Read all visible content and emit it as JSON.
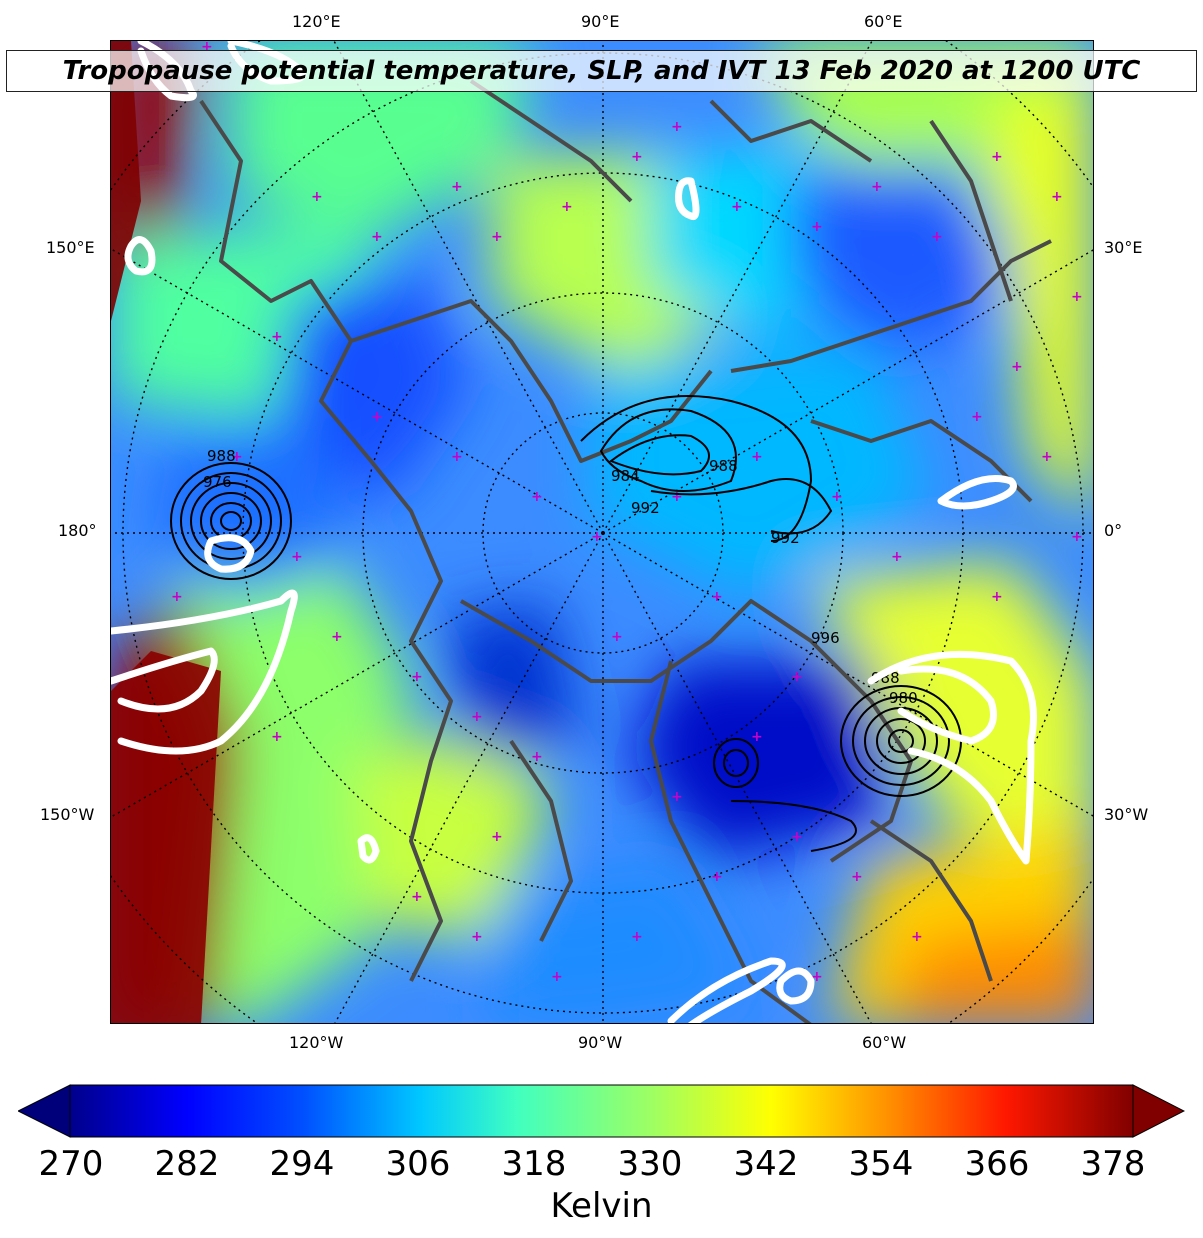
{
  "title": "Tropopause potential temperature, SLP, and IVT 13 Feb 2020 at 1200 UTC",
  "lon_labels": {
    "top": [
      "120°E",
      "90°E",
      "60°E"
    ],
    "bottom": [
      "120°W",
      "90°W",
      "60°W"
    ],
    "left": [
      "150°E",
      "180°",
      "150°W"
    ],
    "right": [
      "30°E",
      "0°",
      "30°W"
    ]
  },
  "slp_labels": [
    "988",
    "984",
    "988",
    "992",
    "992",
    "988",
    "996",
    "976",
    "980"
  ],
  "colorbar": {
    "label": "Kelvin",
    "ticks": [
      "270",
      "282",
      "294",
      "306",
      "318",
      "330",
      "342",
      "354",
      "366",
      "378"
    ],
    "min": 270,
    "max": 378,
    "extend": "both",
    "colormap": "jet",
    "stops": [
      "#00008b",
      "#0000ff",
      "#0080ff",
      "#00ffff",
      "#80ff80",
      "#ffff00",
      "#ff8000",
      "#ff0000",
      "#800000"
    ]
  },
  "colors": {
    "coastline": "#4a4a4a",
    "slp_contour": "#000000",
    "ivt_contour": "#ffffff",
    "station_marker": "#c800c8"
  }
}
